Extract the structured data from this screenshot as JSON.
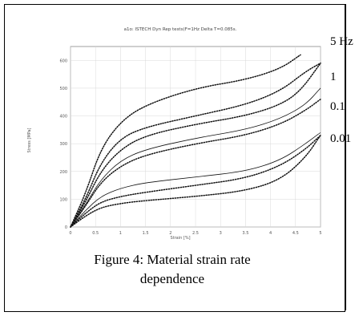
{
  "figure": {
    "caption_line1": "Figure 4: Material strain rate",
    "caption_line2": "dependence"
  },
  "chart_data": {
    "type": "line",
    "title": "a1o: ISTECH Dyn Rep tests(F=1Hz  Delta T=0.085s.",
    "xlabel": "Strain [%]",
    "ylabel": "Stress [MPa]",
    "xlim": [
      0,
      5
    ],
    "ylim": [
      0,
      800
    ],
    "x_ticks": [
      "0",
      "0.5",
      "1",
      "1.5",
      "2",
      "2.5",
      "3",
      "3.5",
      "4",
      "4.5",
      "5"
    ],
    "y_ticks": [
      "0",
      "100",
      "200",
      "300",
      "400",
      "500",
      "600"
    ],
    "grid": true,
    "frequency_labels": [
      "5 Hz",
      "1",
      "0.1",
      "0.01"
    ],
    "series": [
      {
        "style": "dotted",
        "points": [
          [
            0,
            0
          ],
          [
            0.3,
            120
          ],
          [
            0.6,
            280
          ],
          [
            1.0,
            380
          ],
          [
            1.5,
            440
          ],
          [
            2.5,
            500
          ],
          [
            3.5,
            530
          ],
          [
            4.2,
            570
          ],
          [
            4.6,
            620
          ]
        ]
      },
      {
        "style": "dotted",
        "points": [
          [
            0,
            0
          ],
          [
            0.3,
            100
          ],
          [
            0.6,
            230
          ],
          [
            1.0,
            320
          ],
          [
            1.5,
            360
          ],
          [
            2.5,
            400
          ],
          [
            3.5,
            440
          ],
          [
            4.2,
            490
          ],
          [
            4.7,
            560
          ],
          [
            5.0,
            590
          ]
        ]
      },
      {
        "style": "dotted",
        "points": [
          [
            0,
            0
          ],
          [
            0.3,
            90
          ],
          [
            0.6,
            200
          ],
          [
            1.0,
            280
          ],
          [
            1.5,
            330
          ],
          [
            2.5,
            370
          ],
          [
            3.5,
            400
          ],
          [
            4.2,
            440
          ],
          [
            4.6,
            490
          ],
          [
            5.0,
            590
          ]
        ]
      },
      {
        "style": "solid",
        "points": [
          [
            0,
            0
          ],
          [
            0.3,
            80
          ],
          [
            0.6,
            170
          ],
          [
            1.0,
            240
          ],
          [
            1.5,
            280
          ],
          [
            2.5,
            320
          ],
          [
            3.5,
            350
          ],
          [
            4.2,
            390
          ],
          [
            4.7,
            440
          ],
          [
            5.0,
            500
          ]
        ]
      },
      {
        "style": "dotted",
        "points": [
          [
            0,
            0
          ],
          [
            0.3,
            75
          ],
          [
            0.6,
            160
          ],
          [
            1.0,
            220
          ],
          [
            1.5,
            260
          ],
          [
            2.5,
            300
          ],
          [
            3.5,
            330
          ],
          [
            4.2,
            370
          ],
          [
            4.7,
            420
          ],
          [
            5.0,
            460
          ]
        ]
      },
      {
        "style": "solid",
        "points": [
          [
            0,
            0
          ],
          [
            0.3,
            60
          ],
          [
            0.6,
            110
          ],
          [
            1.0,
            140
          ],
          [
            1.5,
            160
          ],
          [
            2.5,
            180
          ],
          [
            3.5,
            200
          ],
          [
            4.2,
            240
          ],
          [
            4.7,
            300
          ],
          [
            5.0,
            340
          ]
        ]
      },
      {
        "style": "dotted",
        "points": [
          [
            0,
            0
          ],
          [
            0.3,
            50
          ],
          [
            0.6,
            90
          ],
          [
            1.0,
            110
          ],
          [
            1.5,
            125
          ],
          [
            2.5,
            150
          ],
          [
            3.5,
            175
          ],
          [
            4.2,
            220
          ],
          [
            4.7,
            280
          ],
          [
            5.0,
            330
          ]
        ]
      },
      {
        "style": "dotted",
        "points": [
          [
            0,
            0
          ],
          [
            0.3,
            40
          ],
          [
            0.6,
            70
          ],
          [
            1.0,
            85
          ],
          [
            1.5,
            95
          ],
          [
            2.5,
            110
          ],
          [
            3.5,
            130
          ],
          [
            4.2,
            170
          ],
          [
            4.7,
            250
          ],
          [
            5.0,
            330
          ]
        ]
      }
    ]
  }
}
